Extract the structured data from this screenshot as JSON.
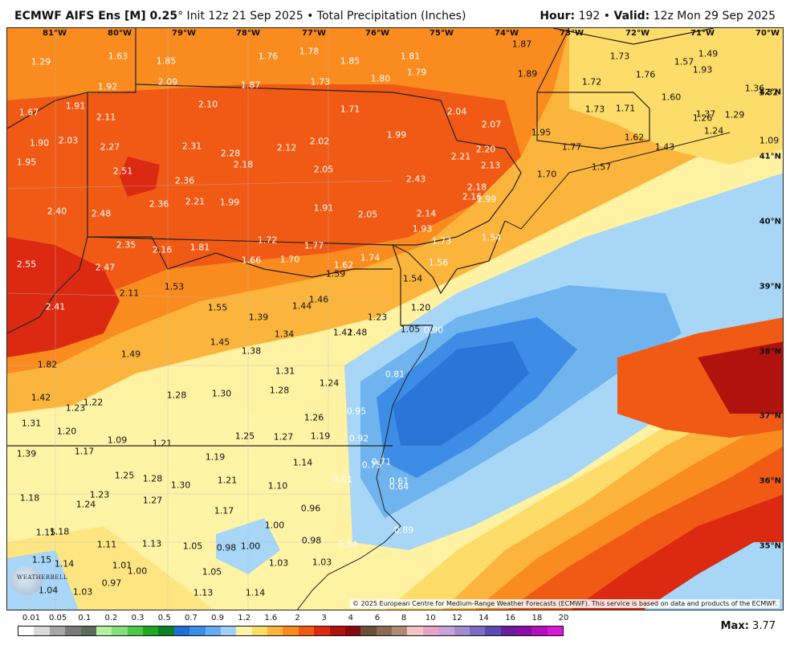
{
  "header": {
    "model": "ECMWF AIFS Ens [M] 0.25",
    "degree": "°",
    "init": " Init 12z 21 Sep 2025",
    "product": " • Total Precipitation (Inches)",
    "hour_label": "Hour:",
    "hour": " 192 • ",
    "valid_label": "Valid:",
    "valid": " 12z Mon 29 Sep 2025"
  },
  "map": {
    "longitude_labels": [
      "81°W",
      "80°W",
      "79°W",
      "78°W",
      "77°W",
      "76°W",
      "75°W",
      "74°W",
      "73°W",
      "72°W",
      "71°W",
      "70°W"
    ],
    "latitude_labels": [
      "42°N",
      "41°N",
      "40°N",
      "39°N",
      "38°N",
      "37°N",
      "36°N",
      "35°N"
    ],
    "values": [
      "1.29",
      "1.63",
      "1.85",
      "1.76",
      "1.78",
      "1.85",
      "1.81",
      "1.87",
      "1.73",
      "1.57",
      "1.49",
      "1.92",
      "2.09",
      "1.87",
      "1.73",
      "1.80",
      "1.79",
      "1.89",
      "1.72",
      "1.76",
      "1.93",
      "1.67",
      "1.91",
      "2.10",
      "1.71",
      "2.04",
      "1.73",
      "1.71",
      "1.60",
      "1.36",
      "1.32",
      "2.11",
      "2.07",
      "1.95",
      "1.37",
      "1.29",
      "1.26",
      "1.90",
      "2.03",
      "2.27",
      "2.31",
      "2.12",
      "2.02",
      "1.99",
      "1.62",
      "1.43",
      "1.24",
      "1.09",
      "1.95",
      "2.28",
      "2.18",
      "2.21",
      "2.20",
      "1.77",
      "1.57",
      "2.51",
      "2.05",
      "2.13",
      "1.70",
      "2.36",
      "2.43",
      "2.18",
      "2.16",
      "2.40",
      "2.48",
      "2.36",
      "2.21",
      "1.99",
      "1.91",
      "2.05",
      "2.14",
      "1.99",
      "1.93",
      "1.54",
      "2.35",
      "2.16",
      "1.81",
      "1.72",
      "1.77",
      "1.73",
      "2.55",
      "2.47",
      "1.66",
      "1.70",
      "1.62",
      "1.74",
      "1.56",
      "1.59",
      "1.54",
      "2.11",
      "1.53",
      "1.46",
      "1.44",
      "2.41",
      "1.55",
      "1.39",
      "1.23",
      "1.20",
      "1.34",
      "1.42",
      "1.48",
      "1.05",
      "0.90",
      "1.49",
      "1.45",
      "1.38",
      "1.82",
      "1.31",
      "1.24",
      "0.81",
      "1.42",
      "1.28",
      "1.30",
      "1.28",
      "1.23",
      "1.22",
      "1.26",
      "0.95",
      "1.31",
      "1.20",
      "1.09",
      "1.21",
      "1.25",
      "1.27",
      "1.19",
      "0.92",
      "1.39",
      "1.17",
      "1.19",
      "1.14",
      "0.75",
      "0.71",
      "1.25",
      "1.28",
      "1.30",
      "1.21",
      "1.10",
      "0.91",
      "0.61",
      "0.64",
      "1.18",
      "1.23",
      "1.24",
      "1.27",
      "1.17",
      "0.96",
      "1.15",
      "1.18",
      "1.00",
      "0.89",
      "1.11",
      "1.13",
      "1.05",
      "0.98",
      "1.00",
      "0.98",
      "0.84",
      "1.15",
      "1.14",
      "1.01",
      "1.00",
      "1.05",
      "1.03",
      "1.03",
      "1.04",
      "1.03",
      "0.97",
      "1.13",
      "1.14"
    ]
  },
  "copyright": "© 2025 European Centre for Medium-Range Weather Forecasts (ECMWF). This service is based on data and products of the ECMWF.",
  "logo_text": "WEATHERBELL",
  "legend": {
    "labels": [
      "0.01",
      "0.05",
      "0.1",
      "0.2",
      "0.3",
      "0.5",
      "0.7",
      "0.9",
      "1.2",
      "1.6",
      "2",
      "3",
      "4",
      "6",
      "8",
      "10",
      "12",
      "14",
      "16",
      "18",
      "20"
    ],
    "colors": [
      "#ffffff",
      "#d9d9d9",
      "#a6a6a6",
      "#7a7a7a",
      "#5c6b5c",
      "#b3f0a0",
      "#84e07a",
      "#4cc84c",
      "#1fa81f",
      "#0c7f2a",
      "#1f6fd6",
      "#3b8fe8",
      "#65adf0",
      "#9fd0f7",
      "#fff3a6",
      "#fddc6a",
      "#fcb53c",
      "#f98b1f",
      "#f15a14",
      "#dc2a12",
      "#b0120e",
      "#86090c",
      "#6b4e3a",
      "#8d6a52",
      "#b08c75",
      "#f2c4c4",
      "#e7a5c6",
      "#c9a3d6",
      "#a48ccf",
      "#7e6bc2",
      "#5a4bb0",
      "#6a1e9e",
      "#8b0fa6",
      "#b20fbf",
      "#dc1ad6"
    ],
    "max_label": "Max:",
    "max_value": " 3.77"
  }
}
